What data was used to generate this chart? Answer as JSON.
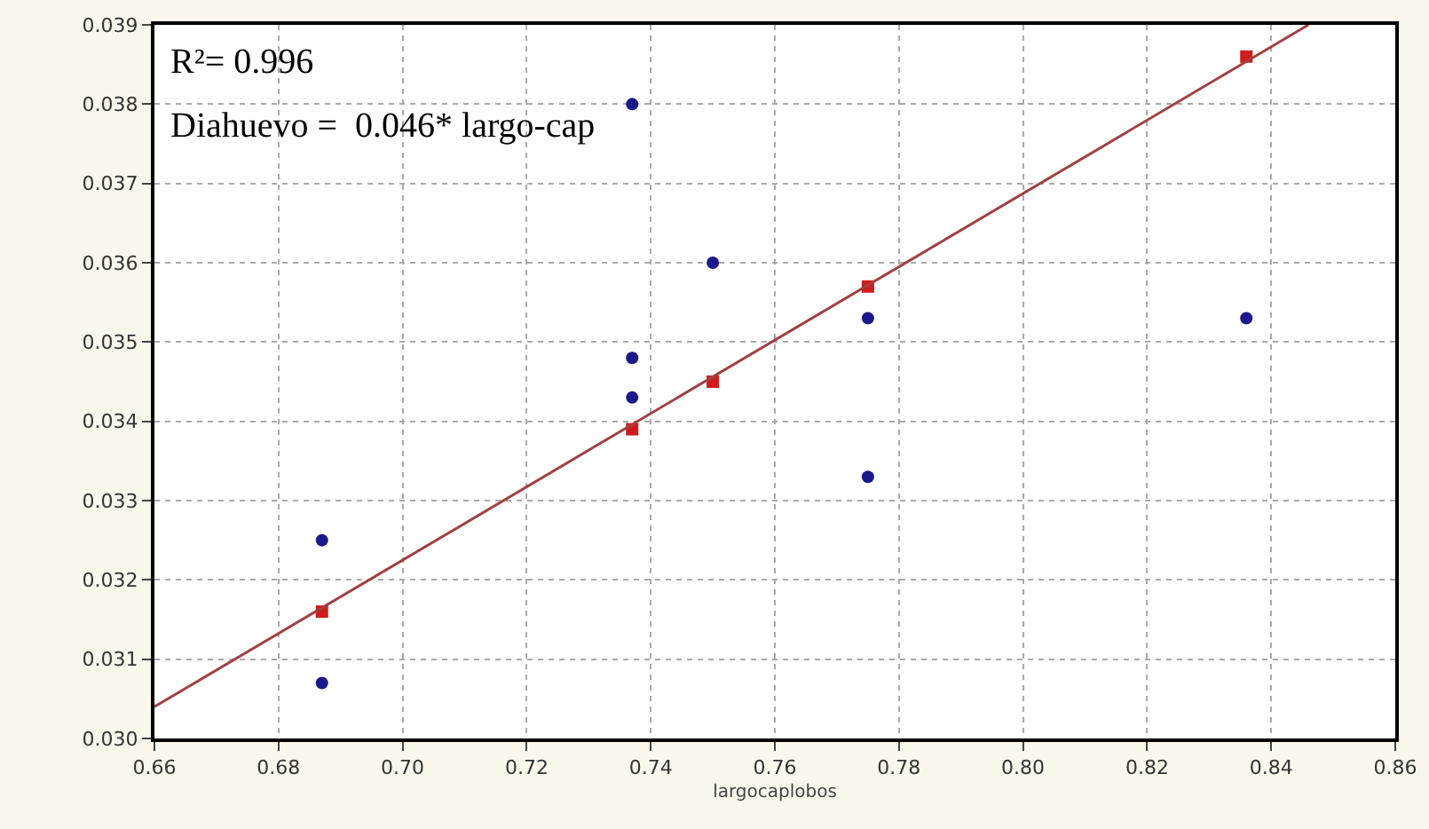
{
  "chart_data": {
    "type": "scatter",
    "xlabel": "largocaplobos",
    "annotations": [
      "R²= 0.996",
      "Diahuevo =  0.046* largo-cap"
    ],
    "series": [
      {
        "color": "#1a1a8c",
        "marker": "circle",
        "x": [
          0.687,
          0.687,
          0.737,
          0.737,
          0.737,
          0.75,
          0.775,
          0.775,
          0.836
        ],
        "values": [
          0.0307,
          0.0325,
          0.038,
          0.0348,
          0.0343,
          0.036,
          0.0353,
          0.0333,
          0.0353
        ]
      },
      {
        "color": "#d01c1c",
        "marker": "square",
        "x": [
          0.687,
          0.737,
          0.75,
          0.775,
          0.836
        ],
        "values": [
          0.0316,
          0.0339,
          0.0345,
          0.0357,
          0.0386
        ]
      },
      {
        "type": "line",
        "color": "#a04040",
        "marker": "none",
        "x": [
          0.66,
          0.846
        ],
        "values": [
          0.0304,
          0.039
        ]
      }
    ],
    "xlim": [
      0.66,
      0.86
    ],
    "xticks": [
      0.66,
      0.68,
      {
        "value": 0.7,
        "label": "0.70"
      },
      0.72,
      0.74,
      0.76,
      0.78,
      {
        "value": 0.8,
        "label": "0.80"
      },
      0.82,
      0.84,
      0.86
    ],
    "ylim": [
      0.03,
      0.039
    ],
    "yticks": [
      {
        "value": 0.03,
        "label": "0.030"
      },
      0.031,
      0.032,
      0.033,
      0.034,
      0.035,
      0.036,
      0.037,
      0.038,
      0.039
    ],
    "grid": true
  }
}
